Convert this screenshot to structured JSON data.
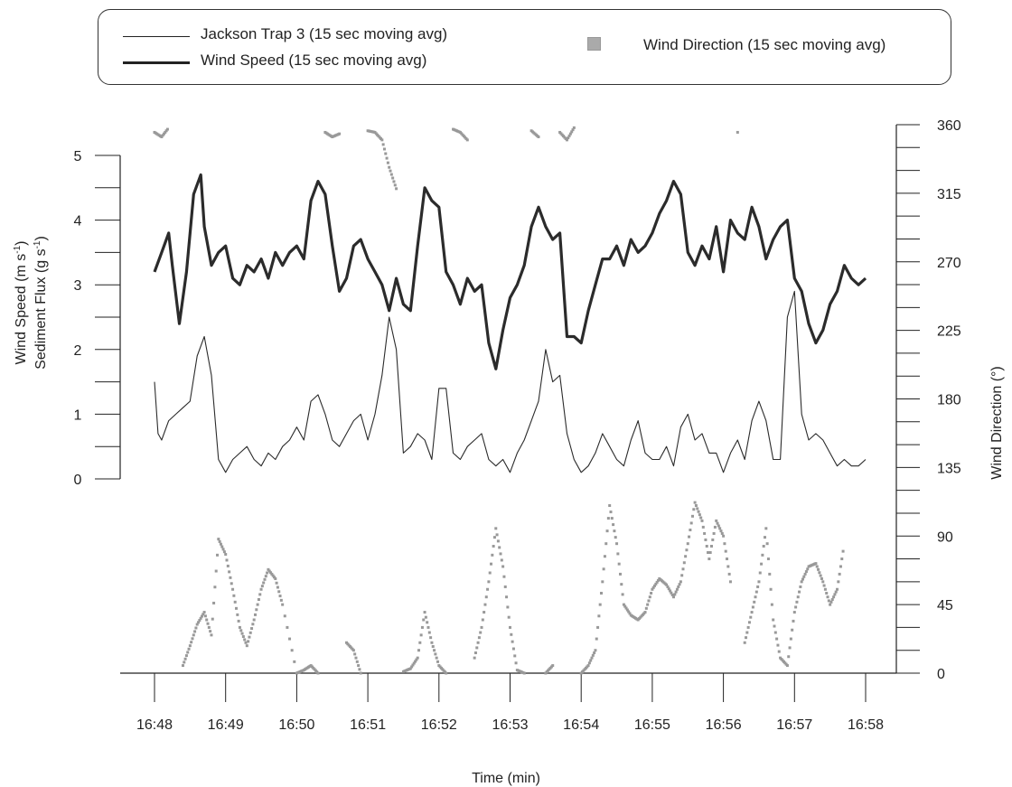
{
  "chart_data": {
    "type": "line",
    "title": "",
    "xlabel": "Time (min)",
    "ylabel_left_line1": "Wind Speed (m s",
    "ylabel_left_sup1": "-1",
    "ylabel_left_line1_close": ")",
    "ylabel_left_line2": "Sediment Flux (g s",
    "ylabel_left_sup2": "-1",
    "ylabel_left_line2_close": ")",
    "ylabel_right": "Wind Direction (°)",
    "x_ticks": [
      "16:48",
      "16:49",
      "16:50",
      "16:51",
      "16:52",
      "16:53",
      "16:54",
      "16:55",
      "16:56",
      "16:57",
      "16:58"
    ],
    "xlim": [
      0,
      10
    ],
    "ylim_left": [
      0,
      5
    ],
    "y_ticks_left": [
      "0",
      "1",
      "2",
      "3",
      "4",
      "5"
    ],
    "ylim_right": [
      0,
      360
    ],
    "y_ticks_right": [
      "0",
      "45",
      "90",
      "135",
      "180",
      "225",
      "270",
      "315",
      "360"
    ],
    "legend_position": "top",
    "legend": {
      "trap": "Jackson Trap 3 (15 sec moving avg)",
      "wind_speed": "Wind Speed (15 sec moving avg)",
      "wind_direction": "Wind Direction (15 sec moving avg)"
    },
    "series": [
      {
        "name": "Wind Speed (15 sec moving avg)",
        "axis": "left",
        "style": "thick-line",
        "color": "#2b2b2b",
        "x": [
          0,
          0.1,
          0.2,
          0.25,
          0.35,
          0.45,
          0.55,
          0.65,
          0.7,
          0.8,
          0.9,
          1.0,
          1.1,
          1.2,
          1.3,
          1.4,
          1.5,
          1.6,
          1.7,
          1.8,
          1.9,
          2.0,
          2.1,
          2.2,
          2.3,
          2.4,
          2.5,
          2.6,
          2.7,
          2.8,
          2.9,
          3.0,
          3.1,
          3.2,
          3.3,
          3.4,
          3.5,
          3.6,
          3.7,
          3.8,
          3.9,
          4.0,
          4.1,
          4.2,
          4.3,
          4.4,
          4.5,
          4.6,
          4.7,
          4.8,
          4.9,
          5.0,
          5.1,
          5.2,
          5.3,
          5.4,
          5.5,
          5.6,
          5.7,
          5.8,
          5.9,
          6.0,
          6.1,
          6.2,
          6.3,
          6.4,
          6.5,
          6.6,
          6.7,
          6.8,
          6.9,
          7.0,
          7.1,
          7.2,
          7.3,
          7.4,
          7.5,
          7.6,
          7.7,
          7.8,
          7.9,
          8.0,
          8.1,
          8.2,
          8.3,
          8.4,
          8.5,
          8.6,
          8.7,
          8.8,
          8.9,
          9.0,
          9.1,
          9.2,
          9.3,
          9.4,
          9.5,
          9.6,
          9.7,
          9.8,
          9.9,
          10.0
        ],
        "values": [
          3.2,
          3.5,
          3.8,
          3.3,
          2.4,
          3.2,
          4.4,
          4.7,
          3.9,
          3.3,
          3.5,
          3.6,
          3.1,
          3.0,
          3.3,
          3.2,
          3.4,
          3.1,
          3.5,
          3.3,
          3.5,
          3.6,
          3.4,
          4.3,
          4.6,
          4.4,
          3.6,
          2.9,
          3.1,
          3.6,
          3.7,
          3.4,
          3.2,
          3.0,
          2.6,
          3.1,
          2.7,
          2.6,
          3.6,
          4.5,
          4.3,
          4.2,
          3.2,
          3.0,
          2.7,
          3.1,
          2.9,
          3.0,
          2.1,
          1.7,
          2.3,
          2.8,
          3.0,
          3.3,
          3.9,
          4.2,
          3.9,
          3.7,
          3.8,
          2.2,
          2.2,
          2.1,
          2.6,
          3.0,
          3.4,
          3.4,
          3.6,
          3.3,
          3.7,
          3.5,
          3.6,
          3.8,
          4.1,
          4.3,
          4.6,
          4.4,
          3.5,
          3.3,
          3.6,
          3.4,
          3.9,
          3.2,
          4.0,
          3.8,
          3.7,
          4.2,
          3.9,
          3.4,
          3.7,
          3.9,
          4.0,
          3.1,
          2.9,
          2.4,
          2.1,
          2.3,
          2.7,
          2.9,
          3.3,
          3.1,
          3.0,
          3.1
        ]
      },
      {
        "name": "Jackson Trap 3 (15 sec moving avg)",
        "axis": "left",
        "style": "thin-line",
        "color": "#2b2b2b",
        "x": [
          0,
          0.05,
          0.1,
          0.2,
          0.3,
          0.4,
          0.5,
          0.6,
          0.7,
          0.8,
          0.9,
          1.0,
          1.1,
          1.2,
          1.3,
          1.4,
          1.5,
          1.6,
          1.7,
          1.8,
          1.9,
          2.0,
          2.1,
          2.2,
          2.3,
          2.4,
          2.5,
          2.6,
          2.7,
          2.8,
          2.9,
          3.0,
          3.1,
          3.2,
          3.3,
          3.4,
          3.5,
          3.6,
          3.7,
          3.8,
          3.9,
          4.0,
          4.1,
          4.2,
          4.3,
          4.4,
          4.5,
          4.6,
          4.7,
          4.8,
          4.9,
          5.0,
          5.1,
          5.2,
          5.3,
          5.4,
          5.5,
          5.6,
          5.7,
          5.8,
          5.9,
          6.0,
          6.1,
          6.2,
          6.3,
          6.4,
          6.5,
          6.6,
          6.7,
          6.8,
          6.9,
          7.0,
          7.1,
          7.2,
          7.3,
          7.4,
          7.5,
          7.6,
          7.7,
          7.8,
          7.9,
          8.0,
          8.1,
          8.2,
          8.3,
          8.4,
          8.5,
          8.6,
          8.7,
          8.8,
          8.9,
          9.0,
          9.1,
          9.2,
          9.3,
          9.4,
          9.5,
          9.6,
          9.7,
          9.8,
          9.9,
          10.0
        ],
        "values": [
          1.5,
          0.7,
          0.6,
          0.9,
          1.0,
          1.1,
          1.2,
          1.9,
          2.2,
          1.6,
          0.3,
          0.1,
          0.3,
          0.4,
          0.5,
          0.3,
          0.2,
          0.4,
          0.3,
          0.5,
          0.6,
          0.8,
          0.6,
          1.2,
          1.3,
          1.0,
          0.6,
          0.5,
          0.7,
          0.9,
          1.0,
          0.6,
          1.0,
          1.6,
          2.5,
          2.0,
          0.4,
          0.5,
          0.7,
          0.6,
          0.3,
          1.4,
          1.4,
          0.4,
          0.3,
          0.5,
          0.6,
          0.7,
          0.3,
          0.2,
          0.3,
          0.1,
          0.4,
          0.6,
          0.9,
          1.2,
          2.0,
          1.5,
          1.6,
          0.7,
          0.3,
          0.1,
          0.2,
          0.4,
          0.7,
          0.5,
          0.3,
          0.2,
          0.6,
          0.9,
          0.4,
          0.3,
          0.3,
          0.5,
          0.2,
          0.8,
          1.0,
          0.6,
          0.7,
          0.4,
          0.4,
          0.1,
          0.4,
          0.6,
          0.3,
          0.9,
          1.2,
          0.9,
          0.3,
          0.3,
          2.5,
          2.9,
          1.0,
          0.6,
          0.7,
          0.6,
          0.4,
          0.2,
          0.3,
          0.2,
          0.2,
          0.3
        ]
      },
      {
        "name": "Wind Direction (15 sec moving avg)",
        "axis": "right",
        "style": "markers",
        "color": "#999999",
        "x": [
          0,
          0.1,
          0.2,
          0.3,
          0.4,
          0.5,
          0.6,
          0.7,
          0.8,
          0.9,
          1.0,
          1.1,
          1.2,
          1.3,
          1.4,
          1.5,
          1.6,
          1.7,
          1.8,
          2.0,
          2.1,
          2.2,
          2.3,
          2.4,
          2.5,
          2.6,
          2.7,
          2.8,
          2.9,
          3.0,
          3.1,
          3.2,
          3.3,
          3.4,
          3.5,
          3.6,
          3.7,
          3.8,
          3.9,
          4.0,
          4.1,
          4.2,
          4.3,
          4.4,
          4.5,
          4.6,
          4.7,
          4.8,
          4.9,
          5.0,
          5.1,
          5.2,
          5.3,
          5.4,
          5.5,
          5.6,
          5.7,
          5.8,
          5.9,
          6.0,
          6.1,
          6.2,
          6.3,
          6.4,
          6.5,
          6.6,
          6.7,
          6.8,
          6.9,
          7.0,
          7.1,
          7.2,
          7.3,
          7.4,
          7.5,
          7.6,
          7.7,
          7.8,
          7.9,
          8.0,
          8.1,
          8.2,
          8.3,
          8.4,
          8.5,
          8.6,
          8.7,
          8.8,
          8.9,
          9.0,
          9.1,
          9.2,
          9.3,
          9.4,
          9.5,
          9.6,
          9.7,
          9.8,
          9.9,
          10.0
        ],
        "values": [
          355,
          352,
          358,
          null,
          5,
          18,
          32,
          40,
          25,
          88,
          78,
          55,
          30,
          18,
          35,
          55,
          68,
          62,
          45,
          0,
          2,
          5,
          0,
          355,
          352,
          354,
          20,
          15,
          0,
          356,
          355,
          350,
          332,
          318,
          1,
          3,
          10,
          40,
          20,
          5,
          0,
          357,
          355,
          350,
          10,
          30,
          60,
          95,
          70,
          30,
          2,
          0,
          356,
          352,
          0,
          5,
          355,
          350,
          358,
          0,
          5,
          15,
          60,
          110,
          85,
          45,
          38,
          35,
          40,
          55,
          62,
          58,
          50,
          60,
          85,
          112,
          100,
          75,
          100,
          90,
          60,
          355,
          20,
          40,
          60,
          95,
          35,
          10,
          5,
          40,
          60,
          70,
          72,
          60,
          45,
          55,
          85,
          null,
          null,
          null
        ]
      }
    ]
  }
}
